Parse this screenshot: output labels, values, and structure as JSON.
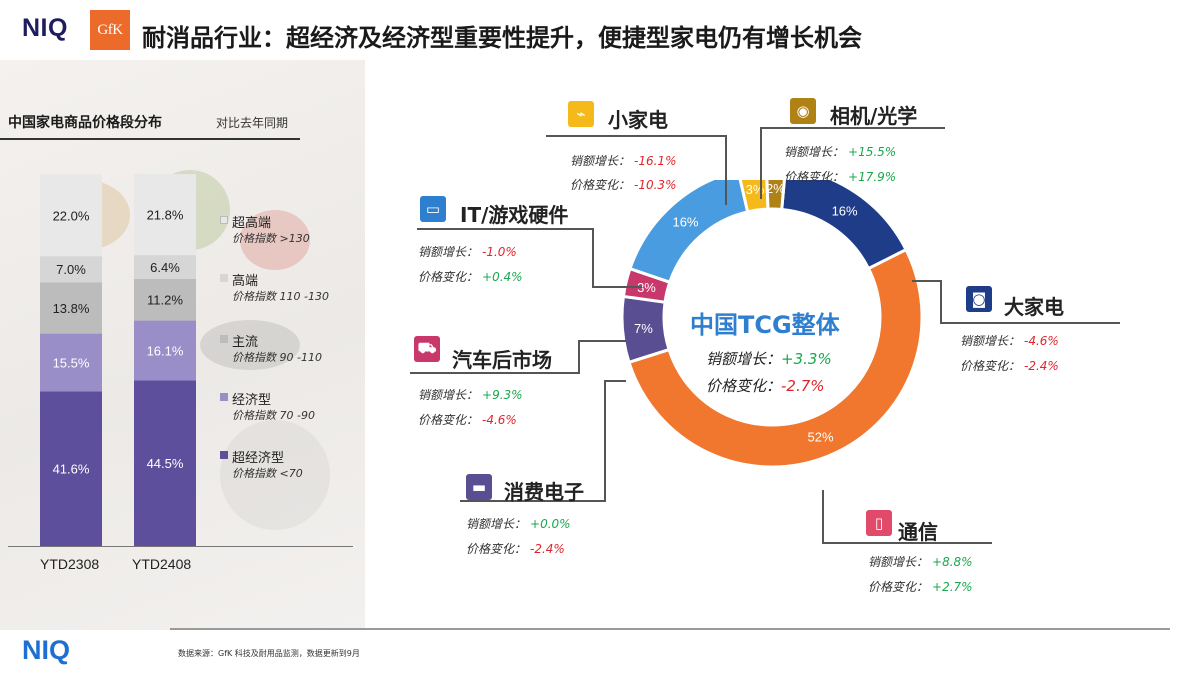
{
  "header": {
    "logo_niq": "NIQ",
    "logo_gfk": "GfK",
    "title": "耐消品行业：超经济及经济型重要性提升，便捷型家电仍有增长机会"
  },
  "left_panel": {
    "title": "中国家电商品价格段分布",
    "subtitle": "对比去年同期"
  },
  "legend": [
    {
      "name": "超高端",
      "index": "价格指数 >130",
      "color": "#e8e8e8"
    },
    {
      "name": "高端",
      "index": "价格指数 110 -130",
      "color": "#d6d6d6"
    },
    {
      "name": "主流",
      "index": "价格指数 90 -110",
      "color": "#bcbcbc"
    },
    {
      "name": "经济型",
      "index": "价格指数 70 -90",
      "color": "#9a8ec9"
    },
    {
      "name": "超经济型",
      "index": "价格指数 <70",
      "color": "#5e4f9c"
    }
  ],
  "donut": {
    "center_title": "中国TCG整体",
    "sales_label": "销额增长：",
    "sales_value": "+3.3%",
    "price_label": "价格变化：",
    "price_value": "-2.7%"
  },
  "categories": {
    "small_appl": {
      "name": "小家电",
      "sales_label": "销额增长：",
      "sales": "-16.1%",
      "price_label": "价格变化：",
      "price": "-10.3%"
    },
    "camera": {
      "name": "相机/光学",
      "sales_label": "销额增长：",
      "sales": "+15.5%",
      "price_label": "价格变化：",
      "price": "+17.9%"
    },
    "it": {
      "name": "IT/游戏硬件",
      "sales_label": "销额增长：",
      "sales": "-1.0%",
      "price_label": "价格变化：",
      "price": "+0.4%"
    },
    "major_appl": {
      "name": "大家电",
      "sales_label": "销额增长：",
      "sales": "-4.6%",
      "price_label": "价格变化：",
      "price": "-2.4%"
    },
    "auto": {
      "name": "汽车后市场",
      "sales_label": "销额增长：",
      "sales": "+9.3%",
      "price_label": "价格变化：",
      "price": "-4.6%"
    },
    "consumer": {
      "name": "消费电子",
      "sales_label": "销额增长：",
      "sales": "+0.0%",
      "price_label": "价格变化：",
      "price": "-2.4%"
    },
    "telecom": {
      "name": "通信",
      "sales_label": "销额增长：",
      "sales": "+8.8%",
      "price_label": "价格变化：",
      "price": "+2.7%"
    }
  },
  "footer": {
    "logo": "NIQ",
    "source": "数据来源：GfK 科技及耐用品监测，数据更新到9月"
  },
  "chart_data": [
    {
      "type": "bar",
      "stacked": true,
      "title": "中国家电商品价格段分布",
      "categories": [
        "YTD2308",
        "YTD2408"
      ],
      "series": [
        {
          "name": "超经济型",
          "values": [
            41.6,
            44.5
          ],
          "labels": [
            "41.6%",
            "44.5%"
          ],
          "color": "#5e4f9c"
        },
        {
          "name": "经济型",
          "values": [
            15.5,
            16.1
          ],
          "labels": [
            "15.5%",
            "16.1%"
          ],
          "color": "#9a8ec9"
        },
        {
          "name": "主流",
          "values": [
            13.8,
            11.2
          ],
          "labels": [
            "13.8%",
            "11.2%"
          ],
          "color": "#bcbcbc"
        },
        {
          "name": "高端",
          "values": [
            7.0,
            6.4
          ],
          "labels": [
            "7.0%",
            "6.4%"
          ],
          "color": "#d6d6d6"
        },
        {
          "name": "超高端",
          "values": [
            22.0,
            21.8
          ],
          "labels": [
            "22.0%",
            "21.8%"
          ],
          "color": "#e8e8e8"
        }
      ],
      "ylim": [
        0,
        100
      ]
    },
    {
      "type": "pie",
      "donut": true,
      "slices": [
        {
          "name": "大家电",
          "value": 16,
          "label": "16%",
          "color": "#1f3c88"
        },
        {
          "name": "通信",
          "value": 52,
          "label": "52%",
          "color": "#f0772d"
        },
        {
          "name": "消费电子",
          "value": 7,
          "label": "7%",
          "color": "#5a4e92"
        },
        {
          "name": "汽车后市场",
          "value": 3,
          "label": "3%",
          "color": "#c8386a"
        },
        {
          "name": "IT/游戏硬件",
          "value": 16,
          "label": "16%",
          "color": "#4a9ce0"
        },
        {
          "name": "小家电",
          "value": 3,
          "label": "3%",
          "color": "#f6b91a"
        },
        {
          "name": "相机/光学",
          "value": 2,
          "label": "2%",
          "color": "#b08216"
        }
      ]
    }
  ]
}
